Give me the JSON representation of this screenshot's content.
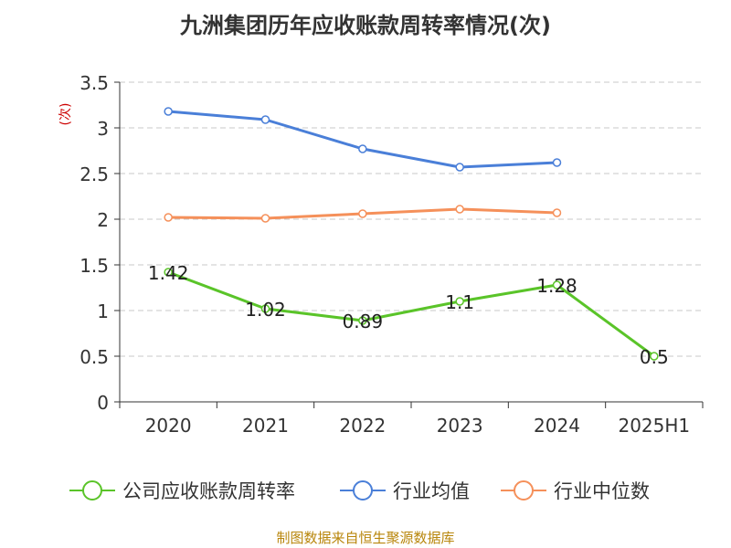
{
  "chart_data": {
    "type": "line",
    "title": "九洲集团历年应收账款周转率情况(次)",
    "ylabel": "(次)",
    "categories": [
      "2020",
      "2021",
      "2022",
      "2023",
      "2024",
      "2025H1"
    ],
    "ylim": [
      0,
      3.5
    ],
    "yticks": [
      "0",
      "0.5",
      "1",
      "1.5",
      "2",
      "2.5",
      "3",
      "3.5"
    ],
    "grid": true,
    "legend_position": "bottom",
    "series": [
      {
        "name": "公司应收账款周转率",
        "color": "#5ac429",
        "values": [
          1.42,
          1.02,
          0.89,
          1.1,
          1.28,
          0.5
        ],
        "labels": [
          "1.42",
          "1.02",
          "0.89",
          "1.1",
          "1.28",
          "0.5"
        ]
      },
      {
        "name": "行业均值",
        "color": "#4a7fd8",
        "values": [
          3.18,
          3.09,
          2.77,
          2.57,
          2.62,
          null
        ]
      },
      {
        "name": "行业中位数",
        "color": "#f5905a",
        "values": [
          2.02,
          2.01,
          2.06,
          2.11,
          2.07,
          null
        ]
      }
    ]
  },
  "source": "制图数据来自恒生聚源数据库"
}
